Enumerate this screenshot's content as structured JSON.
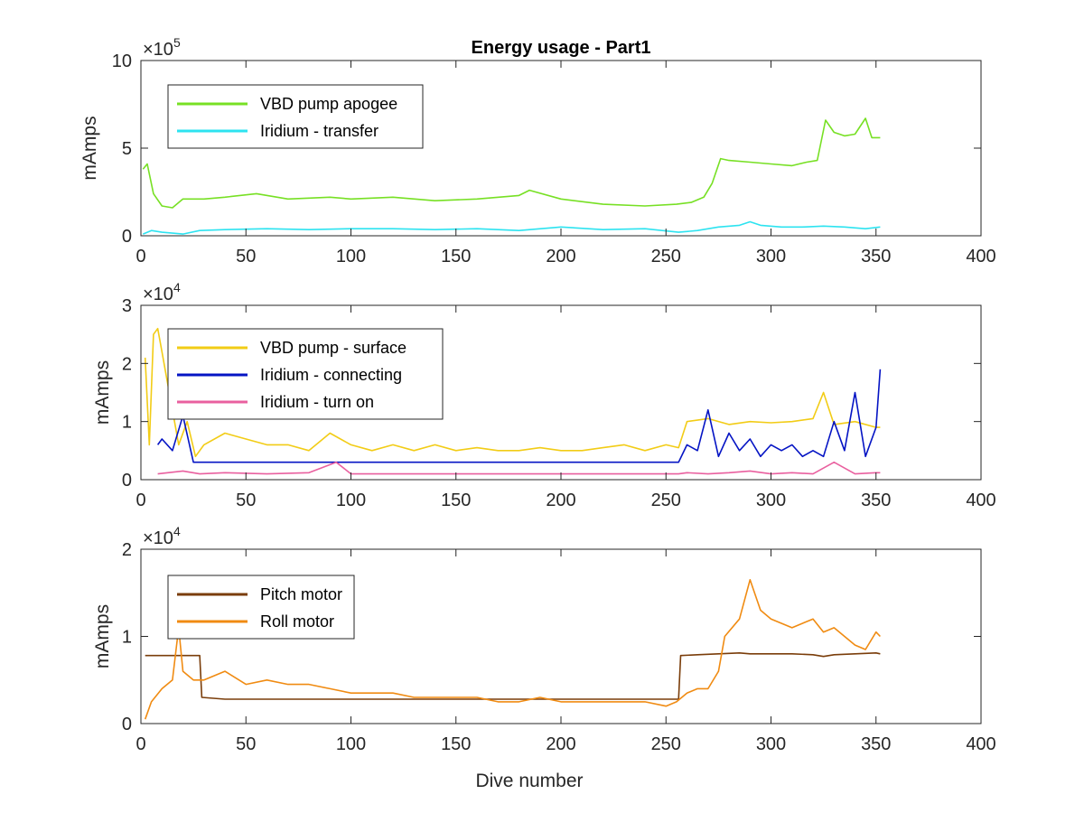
{
  "chart_data": [
    {
      "type": "line",
      "title": "Energy usage - Part1",
      "ylabel": "mAmps",
      "xlabel": "",
      "xlim": [
        0,
        400
      ],
      "ylim": [
        0,
        10
      ],
      "y_multiplier": "×10",
      "y_multiplier_exp": "5",
      "x_ticks": [
        "0",
        "50",
        "100",
        "150",
        "200",
        "250",
        "300",
        "350",
        "400"
      ],
      "y_ticks": [
        "0",
        "5",
        "10"
      ],
      "legend_position": "top-left",
      "series": [
        {
          "name": "VBD pump apogee",
          "color": "#77e024",
          "x": [
            1,
            3,
            6,
            10,
            15,
            20,
            30,
            40,
            55,
            70,
            90,
            100,
            120,
            140,
            160,
            180,
            185,
            200,
            220,
            240,
            255,
            262,
            268,
            272,
            276,
            280,
            290,
            300,
            310,
            317,
            322,
            326,
            330,
            335,
            340,
            345,
            348,
            352
          ],
          "y": [
            3.8,
            4.1,
            2.4,
            1.7,
            1.6,
            2.1,
            2.1,
            2.2,
            2.4,
            2.1,
            2.2,
            2.1,
            2.2,
            2.0,
            2.1,
            2.3,
            2.6,
            2.1,
            1.8,
            1.7,
            1.8,
            1.9,
            2.2,
            3.0,
            4.4,
            4.3,
            4.2,
            4.1,
            4.0,
            4.2,
            4.3,
            6.6,
            5.9,
            5.7,
            5.8,
            6.7,
            5.6,
            5.6
          ]
        },
        {
          "name": "Iridium - transfer",
          "color": "#2de3f0",
          "x": [
            1,
            5,
            10,
            20,
            28,
            40,
            60,
            80,
            100,
            120,
            140,
            160,
            180,
            200,
            220,
            240,
            256,
            265,
            275,
            285,
            290,
            295,
            305,
            315,
            325,
            335,
            345,
            352
          ],
          "y": [
            0.1,
            0.3,
            0.2,
            0.1,
            0.3,
            0.35,
            0.4,
            0.35,
            0.4,
            0.4,
            0.35,
            0.4,
            0.3,
            0.5,
            0.35,
            0.4,
            0.2,
            0.3,
            0.5,
            0.6,
            0.8,
            0.6,
            0.5,
            0.5,
            0.55,
            0.5,
            0.4,
            0.5
          ]
        }
      ]
    },
    {
      "type": "line",
      "title": "",
      "ylabel": "mAmps",
      "xlabel": "",
      "xlim": [
        0,
        400
      ],
      "ylim": [
        0,
        3
      ],
      "y_multiplier": "×10",
      "y_multiplier_exp": "4",
      "x_ticks": [
        "0",
        "50",
        "100",
        "150",
        "200",
        "250",
        "300",
        "350",
        "400"
      ],
      "y_ticks": [
        "0",
        "1",
        "2",
        "3"
      ],
      "legend_position": "top-left",
      "series": [
        {
          "name": "VBD pump - surface",
          "color": "#f2cc16",
          "x": [
            2,
            4,
            6,
            8,
            10,
            12,
            15,
            18,
            22,
            26,
            30,
            40,
            50,
            60,
            70,
            80,
            90,
            100,
            110,
            120,
            130,
            140,
            150,
            160,
            170,
            180,
            190,
            200,
            210,
            220,
            230,
            240,
            250,
            256,
            260,
            270,
            280,
            290,
            300,
            310,
            320,
            325,
            330,
            340,
            350,
            352
          ],
          "y": [
            2.1,
            0.6,
            2.5,
            2.6,
            2.2,
            1.8,
            1.2,
            0.6,
            1.0,
            0.4,
            0.6,
            0.8,
            0.7,
            0.6,
            0.6,
            0.5,
            0.8,
            0.6,
            0.5,
            0.6,
            0.5,
            0.6,
            0.5,
            0.55,
            0.5,
            0.5,
            0.55,
            0.5,
            0.5,
            0.55,
            0.6,
            0.5,
            0.6,
            0.55,
            1.0,
            1.05,
            0.95,
            1.0,
            0.98,
            1.0,
            1.05,
            1.5,
            0.95,
            1.0,
            0.9,
            0.9
          ]
        },
        {
          "name": "Iridium - connecting",
          "color": "#0514c4",
          "x": [
            8,
            10,
            15,
            20,
            25,
            30,
            40,
            50,
            60,
            70,
            80,
            90,
            100,
            110,
            120,
            130,
            140,
            150,
            160,
            170,
            180,
            190,
            200,
            210,
            220,
            230,
            240,
            250,
            256,
            260,
            265,
            270,
            275,
            280,
            285,
            290,
            295,
            300,
            305,
            310,
            315,
            320,
            325,
            330,
            335,
            340,
            345,
            350,
            352
          ],
          "y": [
            0.6,
            0.7,
            0.5,
            1.1,
            0.3,
            0.3,
            0.3,
            0.3,
            0.3,
            0.3,
            0.3,
            0.3,
            0.3,
            0.3,
            0.3,
            0.3,
            0.3,
            0.3,
            0.3,
            0.3,
            0.3,
            0.3,
            0.3,
            0.3,
            0.3,
            0.3,
            0.3,
            0.3,
            0.3,
            0.6,
            0.5,
            1.2,
            0.4,
            0.8,
            0.5,
            0.7,
            0.4,
            0.6,
            0.5,
            0.6,
            0.4,
            0.5,
            0.4,
            1.0,
            0.5,
            1.5,
            0.4,
            0.9,
            1.9
          ]
        },
        {
          "name": "Iridium - turn on",
          "color": "#e9609f",
          "x": [
            8,
            20,
            28,
            40,
            60,
            80,
            93,
            100,
            120,
            140,
            160,
            180,
            200,
            220,
            240,
            256,
            260,
            270,
            280,
            290,
            300,
            310,
            320,
            330,
            340,
            350,
            352
          ],
          "y": [
            0.1,
            0.15,
            0.1,
            0.12,
            0.1,
            0.12,
            0.3,
            0.1,
            0.1,
            0.1,
            0.1,
            0.1,
            0.1,
            0.1,
            0.1,
            0.1,
            0.12,
            0.1,
            0.12,
            0.15,
            0.1,
            0.12,
            0.1,
            0.3,
            0.1,
            0.12,
            0.12
          ]
        }
      ]
    },
    {
      "type": "line",
      "title": "",
      "ylabel": "mAmps",
      "xlabel": "Dive number",
      "xlim": [
        0,
        400
      ],
      "ylim": [
        0,
        2
      ],
      "y_multiplier": "×10",
      "y_multiplier_exp": "4",
      "x_ticks": [
        "0",
        "50",
        "100",
        "150",
        "200",
        "250",
        "300",
        "350",
        "400"
      ],
      "y_ticks": [
        "0",
        "1",
        "2"
      ],
      "legend_position": "top-left",
      "series": [
        {
          "name": "Pitch motor",
          "color": "#7a3d0a",
          "x": [
            2,
            10,
            20,
            28,
            29,
            40,
            60,
            80,
            100,
            120,
            140,
            160,
            180,
            200,
            220,
            240,
            256,
            257,
            265,
            275,
            285,
            290,
            300,
            310,
            320,
            325,
            330,
            340,
            350,
            352
          ],
          "y": [
            0.78,
            0.78,
            0.78,
            0.78,
            0.3,
            0.28,
            0.28,
            0.28,
            0.28,
            0.28,
            0.28,
            0.28,
            0.28,
            0.28,
            0.28,
            0.28,
            0.28,
            0.78,
            0.79,
            0.8,
            0.81,
            0.8,
            0.8,
            0.8,
            0.79,
            0.77,
            0.79,
            0.8,
            0.81,
            0.8
          ]
        },
        {
          "name": "Roll motor",
          "color": "#f08b12",
          "x": [
            2,
            5,
            10,
            15,
            18,
            20,
            25,
            30,
            40,
            50,
            60,
            70,
            80,
            90,
            100,
            110,
            120,
            130,
            140,
            150,
            160,
            170,
            180,
            190,
            200,
            210,
            220,
            230,
            240,
            250,
            255,
            260,
            265,
            270,
            275,
            278,
            285,
            290,
            295,
            300,
            310,
            320,
            325,
            330,
            335,
            340,
            345,
            350,
            352
          ],
          "y": [
            0.05,
            0.25,
            0.4,
            0.5,
            1.1,
            0.6,
            0.5,
            0.5,
            0.6,
            0.45,
            0.5,
            0.45,
            0.45,
            0.4,
            0.35,
            0.35,
            0.35,
            0.3,
            0.3,
            0.3,
            0.3,
            0.25,
            0.25,
            0.3,
            0.25,
            0.25,
            0.25,
            0.25,
            0.25,
            0.2,
            0.25,
            0.35,
            0.4,
            0.4,
            0.6,
            1.0,
            1.2,
            1.65,
            1.3,
            1.2,
            1.1,
            1.2,
            1.05,
            1.1,
            1.0,
            0.9,
            0.85,
            1.05,
            1.0
          ]
        }
      ]
    }
  ]
}
